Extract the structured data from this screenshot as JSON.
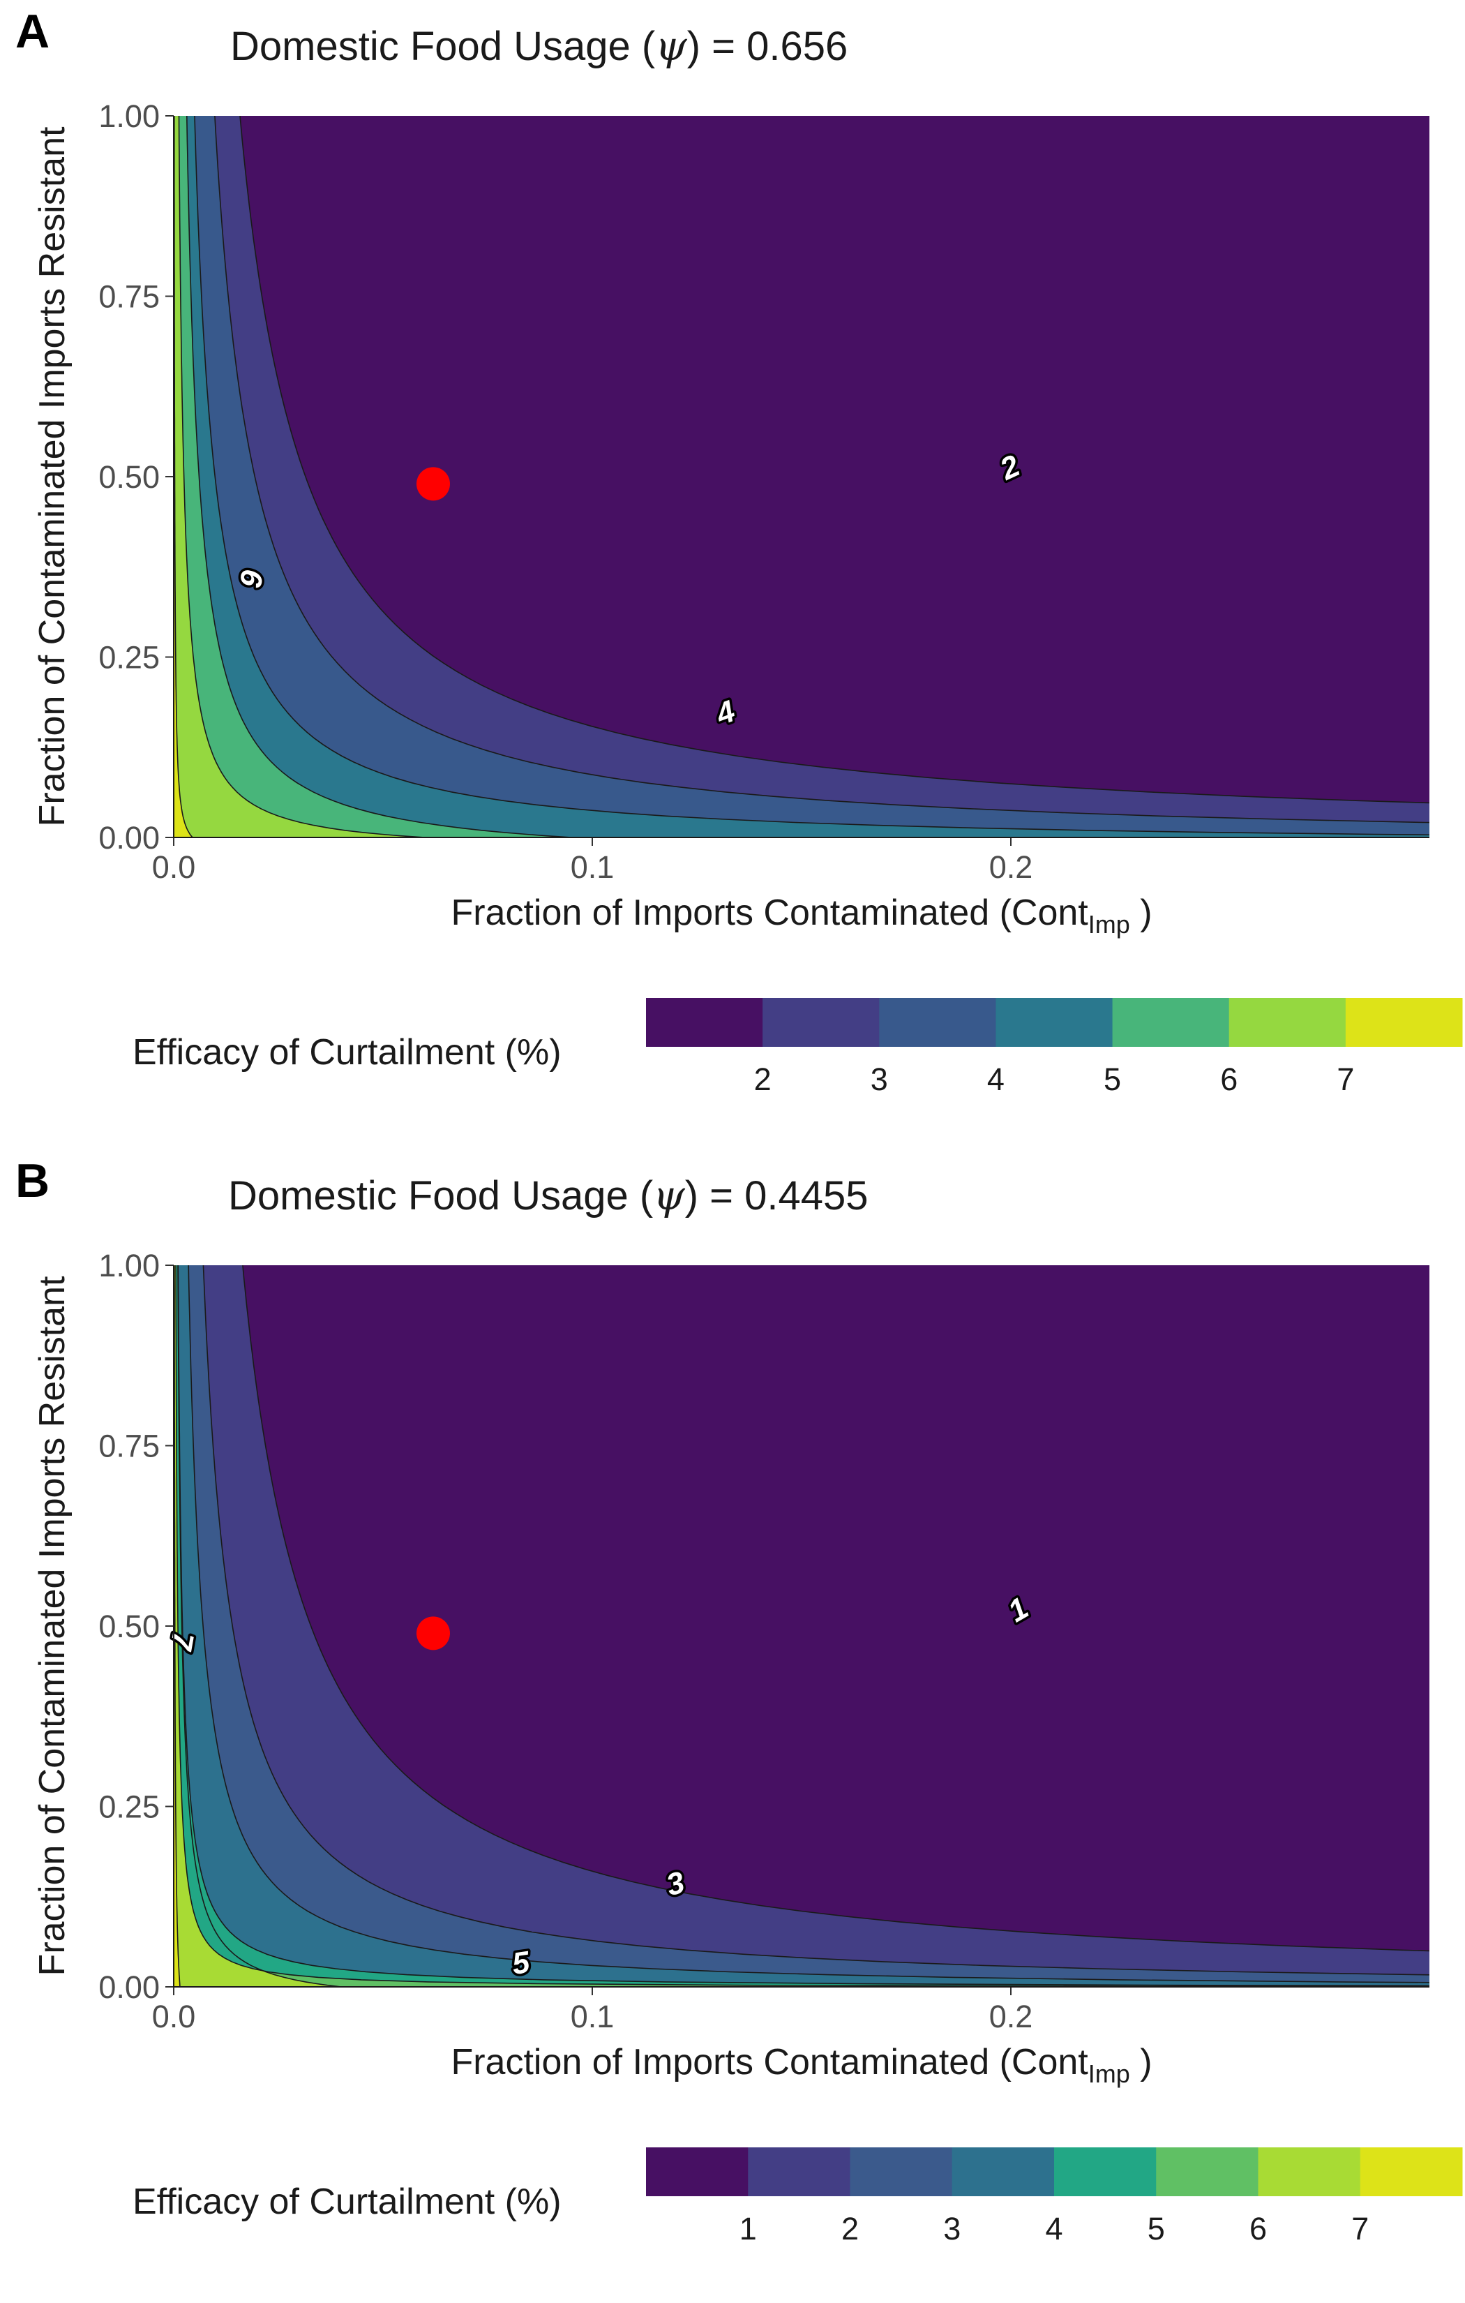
{
  "chart_data": [
    {
      "type": "heatmap",
      "panel": "A",
      "title_prefix": "Domestic Food Usage ",
      "title_symbol": "ψ",
      "title_value": " = 0.656",
      "xlabel": "Fraction of Imports Contaminated (Cont",
      "xlabel_sub": "Imp",
      "xlabel_end": " )",
      "ylabel": "Fraction of Contaminated Imports Resistant",
      "xlim": [
        0,
        0.3
      ],
      "ylim": [
        0,
        1
      ],
      "x_ticks": [
        {
          "value": 0,
          "label": "0.0"
        },
        {
          "value": 0.1,
          "label": "0.1"
        },
        {
          "value": 0.2,
          "label": "0.2"
        }
      ],
      "y_ticks": [
        {
          "value": 0,
          "label": "0.00"
        },
        {
          "value": 0.25,
          "label": "0.25"
        },
        {
          "value": 0.5,
          "label": "0.50"
        },
        {
          "value": 0.75,
          "label": "0.75"
        },
        {
          "value": 1,
          "label": "1.00"
        }
      ],
      "bands": [
        {
          "level": 1.5,
          "color": "#471063"
        },
        {
          "level": 2.5,
          "color": "#433e85"
        },
        {
          "level": 3.5,
          "color": "#38598c"
        },
        {
          "level": 4.5,
          "color": "#2a788e"
        },
        {
          "level": 5.5,
          "color": "#48b57a"
        },
        {
          "level": 6.5,
          "color": "#95d840"
        },
        {
          "level": 7.5,
          "color": "#dde318"
        }
      ],
      "contour_curves": [
        {
          "level": 7,
          "x_at_y0": 0.0045,
          "x_at_y1": 0.001,
          "k": 0.1
        },
        {
          "level": 6,
          "x_at_y0": 0.06,
          "x_at_y1": 0.009,
          "k": 0.12
        },
        {
          "level": 5,
          "x_at_y0": 0.095,
          "x_at_y1": 0.021,
          "k": 0.12
        },
        {
          "level": 4,
          "x_at_y0": 0.38,
          "x_at_y1": 0.038,
          "k": 0.12
        },
        {
          "level": 3,
          "x_at_y0": 0.8,
          "x_at_y1": 0.075,
          "k": 0.12
        },
        {
          "level": 2,
          "x_at_y0": 3.0,
          "x_at_y1": 0.127,
          "k": 0.12
        }
      ],
      "contour_labels": [
        {
          "text": "2",
          "x": 0.2,
          "y": 0.51,
          "angle": -25
        },
        {
          "text": "4",
          "x": 0.132,
          "y": 0.17,
          "angle": -20
        },
        {
          "text": "6",
          "x": 0.018,
          "y": 0.36,
          "angle": 100
        }
      ],
      "highlight_point": {
        "x": 0.062,
        "y": 0.49,
        "color": "#ff0000"
      },
      "legend": {
        "title": "Efficacy of Curtailment (%)",
        "colors": [
          "#471063",
          "#433e85",
          "#38598c",
          "#2a788e",
          "#48b57a",
          "#95d840",
          "#dde318"
        ],
        "tick_labels": [
          "2",
          "3",
          "4",
          "5",
          "6",
          "7"
        ]
      }
    },
    {
      "type": "heatmap",
      "panel": "B",
      "title_prefix": "Domestic Food Usage ",
      "title_symbol": "ψ",
      "title_value": " = 0.4455",
      "xlabel": "Fraction of Imports Contaminated (Cont",
      "xlabel_sub": "Imp",
      "xlabel_end": " )",
      "ylabel": "Fraction of Contaminated Imports Resistant",
      "xlim": [
        0,
        0.3
      ],
      "ylim": [
        0,
        1
      ],
      "x_ticks": [
        {
          "value": 0,
          "label": "0.0"
        },
        {
          "value": 0.1,
          "label": "0.1"
        },
        {
          "value": 0.2,
          "label": "0.2"
        }
      ],
      "y_ticks": [
        {
          "value": 0,
          "label": "0.00"
        },
        {
          "value": 0.25,
          "label": "0.25"
        },
        {
          "value": 0.5,
          "label": "0.50"
        },
        {
          "value": 0.75,
          "label": "0.75"
        },
        {
          "value": 1,
          "label": "1.00"
        }
      ],
      "bands": [
        {
          "level": 0.5,
          "color": "#471063"
        },
        {
          "level": 1.5,
          "color": "#433e85"
        },
        {
          "level": 2.5,
          "color": "#3b5a8c"
        },
        {
          "level": 3.5,
          "color": "#2d718e"
        },
        {
          "level": 4.5,
          "color": "#22a785"
        },
        {
          "level": 5.5,
          "color": "#60c064"
        },
        {
          "level": 6.5,
          "color": "#a8db34"
        },
        {
          "level": 7.5,
          "color": "#dde318"
        }
      ],
      "contour_curves": [
        {
          "level": 7,
          "x_at_y0": 0.0015,
          "x_at_y1": 0.0008,
          "k": 0.1
        },
        {
          "level": 6,
          "x_at_y0": 0.04,
          "x_at_y1": 0.007,
          "k": 0.12
        },
        {
          "level": 5,
          "x_at_y0": 0.36,
          "x_at_y1": 0.016,
          "k": 0.03
        },
        {
          "level": 4,
          "x_at_y0": 0.5,
          "x_at_y1": 0.025,
          "k": 0.04
        },
        {
          "level": 3,
          "x_at_y0": 0.6,
          "x_at_y1": 0.037,
          "k": 0.09
        },
        {
          "level": 2,
          "x_at_y0": 1.0,
          "x_at_y1": 0.056,
          "k": 0.12
        },
        {
          "level": 1,
          "x_at_y0": 3.0,
          "x_at_y1": 0.132,
          "k": 0.12
        }
      ],
      "contour_labels": [
        {
          "text": "1",
          "x": 0.202,
          "y": 0.52,
          "angle": -30
        },
        {
          "text": "3",
          "x": 0.12,
          "y": 0.14,
          "angle": -15
        },
        {
          "text": "5",
          "x": 0.083,
          "y": 0.03,
          "angle": -8
        },
        {
          "text": "7",
          "x": 0.0015,
          "y": 0.48,
          "angle": 100
        }
      ],
      "highlight_point": {
        "x": 0.062,
        "y": 0.49,
        "color": "#ff0000"
      },
      "legend": {
        "title": "Efficacy of Curtailment (%)",
        "colors": [
          "#471063",
          "#433e85",
          "#3b5a8c",
          "#2d718e",
          "#22a785",
          "#60c064",
          "#a8db34",
          "#dde318"
        ],
        "tick_labels": [
          "1",
          "2",
          "3",
          "4",
          "5",
          "6",
          "7"
        ]
      }
    }
  ]
}
